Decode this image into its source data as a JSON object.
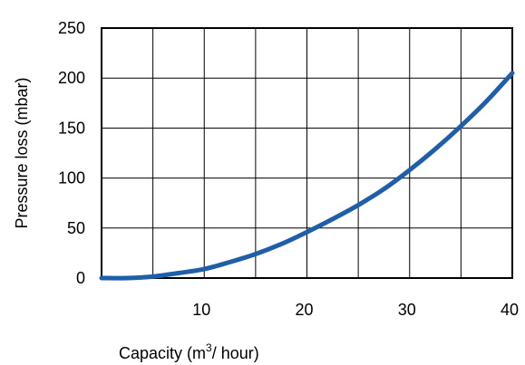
{
  "chart_data": {
    "type": "line",
    "title": "",
    "xlabel": "Capacity  (m",
    "xlabel_superscript": "3",
    "xlabel_suffix": "/ hour)",
    "ylabel": "Pressure loss (mbar)",
    "xlim": [
      0,
      40
    ],
    "ylim": [
      0,
      250
    ],
    "grid": true,
    "xticks": [
      10,
      20,
      30,
      40
    ],
    "xtick_labels": [
      "10",
      "20",
      "30",
      "40"
    ],
    "yticks": [
      0,
      50,
      100,
      150,
      200,
      250
    ],
    "ytick_labels": [
      "0",
      "50",
      "100",
      "150",
      "200",
      "250"
    ],
    "series": [
      {
        "color": "#1f5ea8",
        "x": [
          0,
          2.5,
          5,
          7.5,
          10,
          12.5,
          15,
          17.5,
          20,
          22.5,
          25,
          27.5,
          30,
          32.5,
          35,
          37.5,
          40
        ],
        "y": [
          0,
          0,
          1.5,
          5,
          9,
          16,
          24,
          34,
          46,
          59,
          73,
          89,
          108,
          129,
          152,
          177,
          205
        ]
      }
    ]
  }
}
